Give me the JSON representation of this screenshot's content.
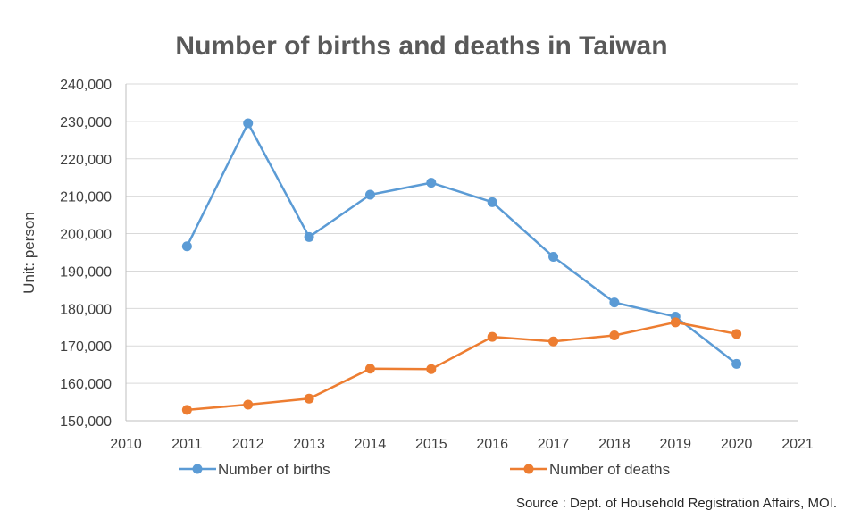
{
  "chart_data": {
    "type": "line",
    "title": "Number of births and deaths in Taiwan",
    "ylabel": "Unit: person",
    "xlabel": "",
    "source": "Source : Dept. of Household Registration Affairs, MOI.",
    "x_ticks": [
      2010,
      2011,
      2012,
      2013,
      2014,
      2015,
      2016,
      2017,
      2018,
      2019,
      2020,
      2021
    ],
    "y_ticks": [
      "150,000",
      "160,000",
      "170,000",
      "180,000",
      "190,000",
      "200,000",
      "210,000",
      "220,000",
      "230,000",
      "240,000"
    ],
    "xlim": [
      2010,
      2021
    ],
    "ylim": [
      150000,
      240000
    ],
    "grid": "horizontal",
    "legend_position": "bottom",
    "x": [
      2011,
      2012,
      2013,
      2014,
      2015,
      2016,
      2017,
      2018,
      2019,
      2020
    ],
    "series": [
      {
        "name": "Number of births",
        "color": "#5b9bd5",
        "values": [
          196600,
          229500,
          199100,
          210400,
          213600,
          208400,
          193800,
          181600,
          177800,
          165200
        ]
      },
      {
        "name": "Number of deaths",
        "color": "#ed7d31",
        "values": [
          152900,
          154300,
          155900,
          163900,
          163800,
          172400,
          171200,
          172800,
          176300,
          173200
        ]
      }
    ]
  }
}
